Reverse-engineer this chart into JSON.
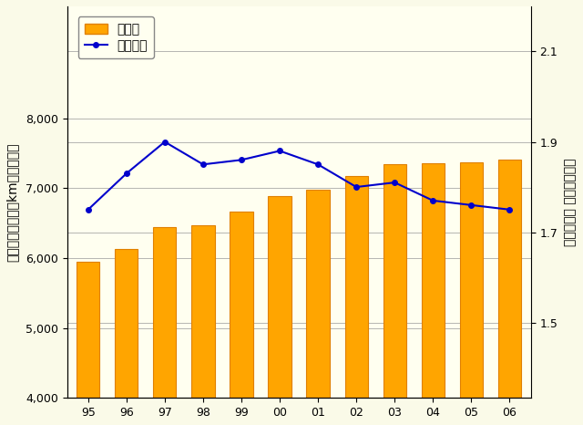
{
  "years": [
    "95",
    "96",
    "97",
    "98",
    "99",
    "00",
    "01",
    "02",
    "03",
    "04",
    "05",
    "06"
  ],
  "bar_values": [
    5950,
    6130,
    6440,
    6470,
    6660,
    6890,
    6980,
    7170,
    7340,
    7360,
    7370,
    7410
  ],
  "line_values": [
    1.75,
    1.83,
    1.9,
    1.85,
    1.86,
    1.88,
    1.85,
    1.8,
    1.81,
    1.77,
    1.76,
    1.75
  ],
  "bar_color": "#FFA500",
  "bar_edge_color": "#E08000",
  "line_color": "#0000CC",
  "marker_color": "#0000CC",
  "background_color": "#FAFAE8",
  "plot_bg_color": "#FFFFF0",
  "left_ylim": [
    4000,
    9600
  ],
  "left_yticks": [
    4000,
    5000,
    6000,
    7000,
    8000
  ],
  "right_ylim": [
    1.333,
    2.2
  ],
  "right_yticks": [
    1.5,
    1.7,
    1.9,
    2.1
  ],
  "left_ylabel_lines": [
    "高",
    "速",
    "道",
    "路",
    "の",
    "延",
    "長",
    "（",
    "k",
    "m",
    "、",
    "年",
    "度",
    "末",
    "）"
  ],
  "right_ylabel_lines": [
    "料",
    "金",
    "収",
    "入",
    "（",
    " 兆",
    "円",
    "／",
    "年",
    "度",
    "）"
  ],
  "legend_bar": "延　長",
  "legend_line": "料金収入",
  "tick_fontsize": 9,
  "label_fontsize": 10,
  "grid_color": "#999999",
  "grid_linewidth": 0.5,
  "bar_width": 0.6,
  "marker_size": 4,
  "line_width": 1.5
}
